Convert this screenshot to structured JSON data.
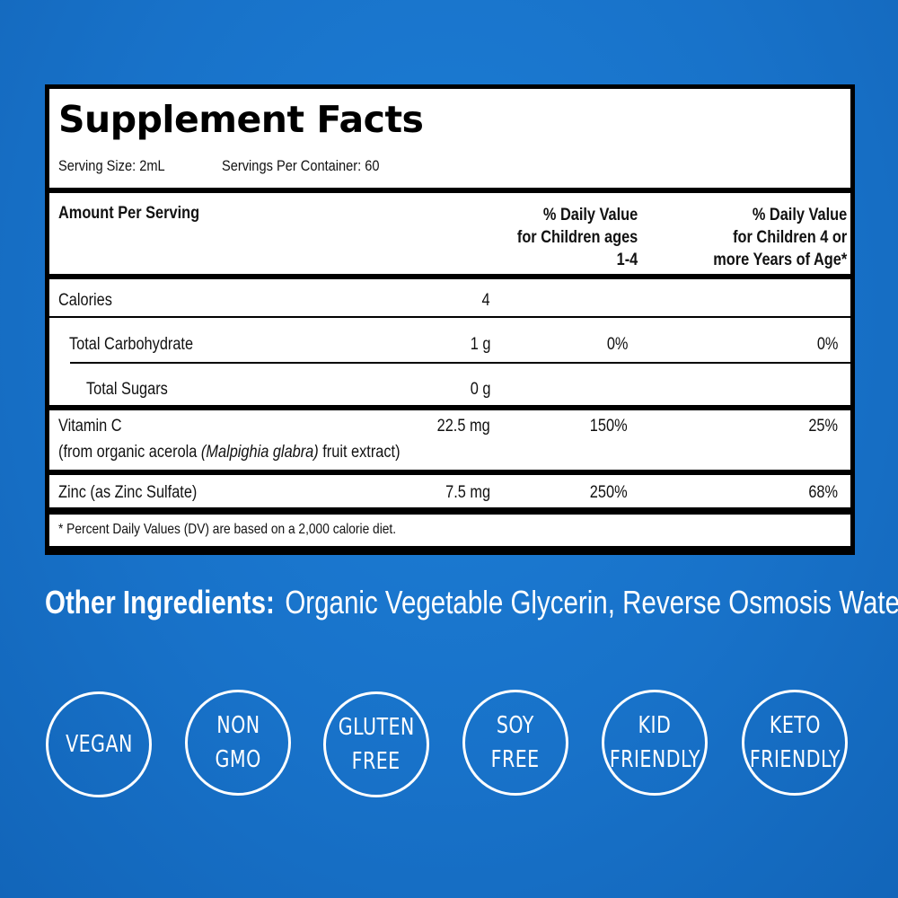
{
  "facts": {
    "title": "Supplement Facts",
    "serving_size": "Serving Size: 2mL",
    "servings_per_container": "Servings Per Container: 60",
    "header": {
      "amount": "Amount Per Serving",
      "dv1_line1": "% Daily Value",
      "dv1_line2": "for Children ages",
      "dv1_line3": "1-4",
      "dv2_line1": "% Daily Value",
      "dv2_line2": "for Children 4 or",
      "dv2_line3": "more Years of Age*"
    },
    "rows": {
      "calories": {
        "name": "Calories",
        "amount": "4"
      },
      "carbs": {
        "name": "Total Carbohydrate",
        "amount": "1 g",
        "dv1": "0%",
        "dv2": "0%"
      },
      "sugars": {
        "name": "Total Sugars",
        "amount": "0 g"
      },
      "vitc": {
        "name": "Vitamin C",
        "amount": "22.5 mg",
        "dv1": "150%",
        "dv2": "25%",
        "sub_pre": "(from organic acerola ",
        "sub_italic": "(Malpighia glabra)",
        "sub_post": " fruit extract)"
      },
      "zinc": {
        "name": "Zinc (as Zinc Sulfate)",
        "amount": "7.5 mg",
        "dv1": "250%",
        "dv2": "68%"
      }
    },
    "footnote": "* Percent Daily Values (DV) are based on a 2,000 calorie diet."
  },
  "other_ingredients": {
    "label": "Other Ingredients:",
    "value": "Organic Vegetable Glycerin, Reverse Osmosis Water."
  },
  "badges": [
    {
      "line1": "VEGAN",
      "line2": ""
    },
    {
      "line1": "NON",
      "line2": "GMO"
    },
    {
      "line1": "GLUTEN",
      "line2": "FREE"
    },
    {
      "line1": "SOY",
      "line2": "FREE"
    },
    {
      "line1": "KID",
      "line2": "FRIENDLY"
    },
    {
      "line1": "KETO",
      "line2": "FRIENDLY"
    }
  ],
  "colors": {
    "background": "#1872c9",
    "panel_border": "#000000",
    "badge_stroke": "#ffffff"
  }
}
